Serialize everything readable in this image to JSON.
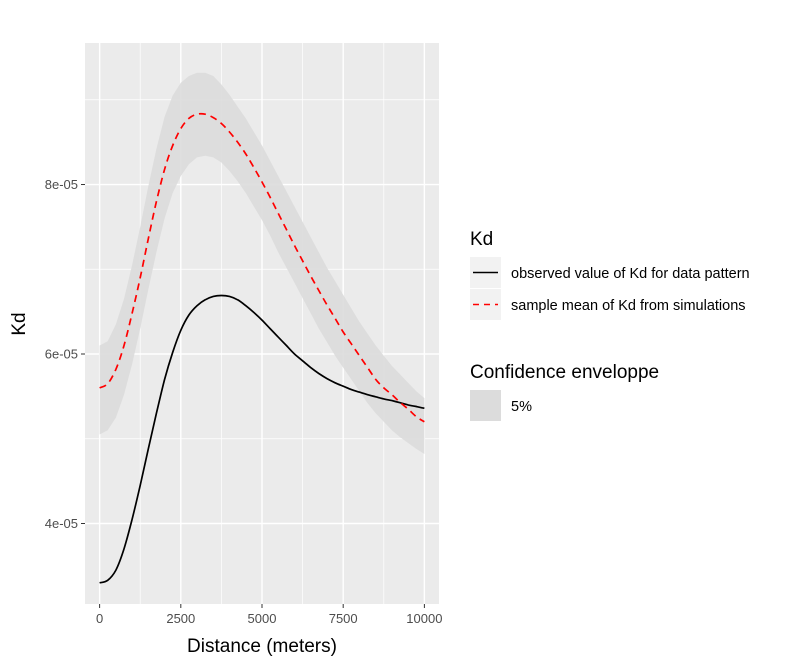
{
  "chart_data": {
    "type": "line",
    "title": "",
    "xlabel": "Distance (meters)",
    "ylabel": "Kd",
    "xlim": [
      -450,
      10450
    ],
    "ylim": [
      3.05e-05,
      9.67e-05
    ],
    "x_ticks": [
      0,
      2500,
      5000,
      7500,
      10000
    ],
    "x_tick_labels": [
      "0",
      "2500",
      "5000",
      "7500",
      "10000"
    ],
    "y_ticks": [
      4e-05,
      6e-05,
      8e-05
    ],
    "y_tick_labels": [
      "4e-05",
      "6e-05",
      "8e-05"
    ],
    "grid": true,
    "legend_position": "right",
    "x": [
      0,
      250,
      500,
      750,
      1000,
      1250,
      1500,
      1750,
      2000,
      2250,
      2500,
      2750,
      3000,
      3250,
      3500,
      3750,
      4000,
      4250,
      4500,
      4750,
      5000,
      5250,
      5500,
      5750,
      6000,
      6250,
      6500,
      6750,
      7000,
      7250,
      7500,
      7750,
      8000,
      8250,
      8500,
      8750,
      9000,
      9250,
      9500,
      9750,
      10000
    ],
    "series": [
      {
        "name": "observed value of Kd for data pattern",
        "style": "solid",
        "color": "#000000",
        "values": [
          3.3e-05,
          3.33e-05,
          3.45e-05,
          3.7e-05,
          4.05e-05,
          4.45e-05,
          4.88e-05,
          5.3e-05,
          5.7e-05,
          6.02e-05,
          6.28e-05,
          6.46e-05,
          6.57e-05,
          6.64e-05,
          6.68e-05,
          6.69e-05,
          6.68e-05,
          6.64e-05,
          6.57e-05,
          6.49e-05,
          6.4e-05,
          6.3e-05,
          6.2e-05,
          6.1e-05,
          6e-05,
          5.92e-05,
          5.84e-05,
          5.77e-05,
          5.71e-05,
          5.66e-05,
          5.62e-05,
          5.58e-05,
          5.55e-05,
          5.52e-05,
          5.495e-05,
          5.47e-05,
          5.45e-05,
          5.425e-05,
          5.4e-05,
          5.38e-05,
          5.36e-05
        ]
      },
      {
        "name": "sample mean of Kd from simulations",
        "style": "dashed",
        "color": "#ff0000",
        "values": [
          5.6e-05,
          5.65e-05,
          5.82e-05,
          6.1e-05,
          6.48e-05,
          6.9e-05,
          7.36e-05,
          7.8e-05,
          8.18e-05,
          8.46e-05,
          8.66e-05,
          8.78e-05,
          8.83e-05,
          8.83e-05,
          8.79e-05,
          8.72e-05,
          8.62e-05,
          8.5e-05,
          8.36e-05,
          8.2e-05,
          8.03e-05,
          7.85e-05,
          7.66e-05,
          7.47e-05,
          7.28e-05,
          7.1e-05,
          6.92e-05,
          6.75e-05,
          6.58e-05,
          6.42e-05,
          6.26e-05,
          6.12e-05,
          5.98e-05,
          5.84e-05,
          5.7e-05,
          5.6e-05,
          5.52e-05,
          5.43e-05,
          5.35e-05,
          5.26e-05,
          5.2e-05
        ]
      }
    ],
    "envelope": {
      "name": "5%",
      "color": "#dcdcdc",
      "lower": [
        5.05e-05,
        5.1e-05,
        5.25e-05,
        5.52e-05,
        5.88e-05,
        6.3e-05,
        6.76e-05,
        7.2e-05,
        7.6e-05,
        7.9e-05,
        8.1e-05,
        8.24e-05,
        8.32e-05,
        8.34e-05,
        8.32e-05,
        8.26e-05,
        8.16e-05,
        8.04e-05,
        7.9e-05,
        7.74e-05,
        7.58e-05,
        7.4e-05,
        7.2e-05,
        7.02e-05,
        6.84e-05,
        6.66e-05,
        6.48e-05,
        6.3e-05,
        6.14e-05,
        5.98e-05,
        5.84e-05,
        5.7e-05,
        5.56e-05,
        5.42e-05,
        5.3e-05,
        5.2e-05,
        5.1e-05,
        5.02e-05,
        4.95e-05,
        4.88e-05,
        4.82e-05
      ],
      "upper": [
        6.1e-05,
        6.15e-05,
        6.35e-05,
        6.65e-05,
        7.05e-05,
        7.5e-05,
        7.98e-05,
        8.42e-05,
        8.8e-05,
        9.05e-05,
        9.2e-05,
        9.28e-05,
        9.32e-05,
        9.32e-05,
        9.28e-05,
        9.18e-05,
        9.06e-05,
        8.92e-05,
        8.78e-05,
        8.62e-05,
        8.46e-05,
        8.28e-05,
        8.1e-05,
        7.92e-05,
        7.74e-05,
        7.56e-05,
        7.38e-05,
        7.2e-05,
        7.02e-05,
        6.86e-05,
        6.7e-05,
        6.54e-05,
        6.38e-05,
        6.24e-05,
        6.1e-05,
        5.98e-05,
        5.86e-05,
        5.76e-05,
        5.66e-05,
        5.56e-05,
        5.48e-05
      ]
    },
    "legend": {
      "line_title": "Kd",
      "line_entries": [
        "observed value of Kd for data pattern",
        "sample mean of Kd from simulations"
      ],
      "fill_title": "Confidence enveloppe",
      "fill_entries": [
        "5%"
      ]
    },
    "colors": {
      "panel_bg": "#ebebeb",
      "grid": "#ffffff",
      "tick": "#333333",
      "key_bg": "#f2f2f2"
    }
  }
}
